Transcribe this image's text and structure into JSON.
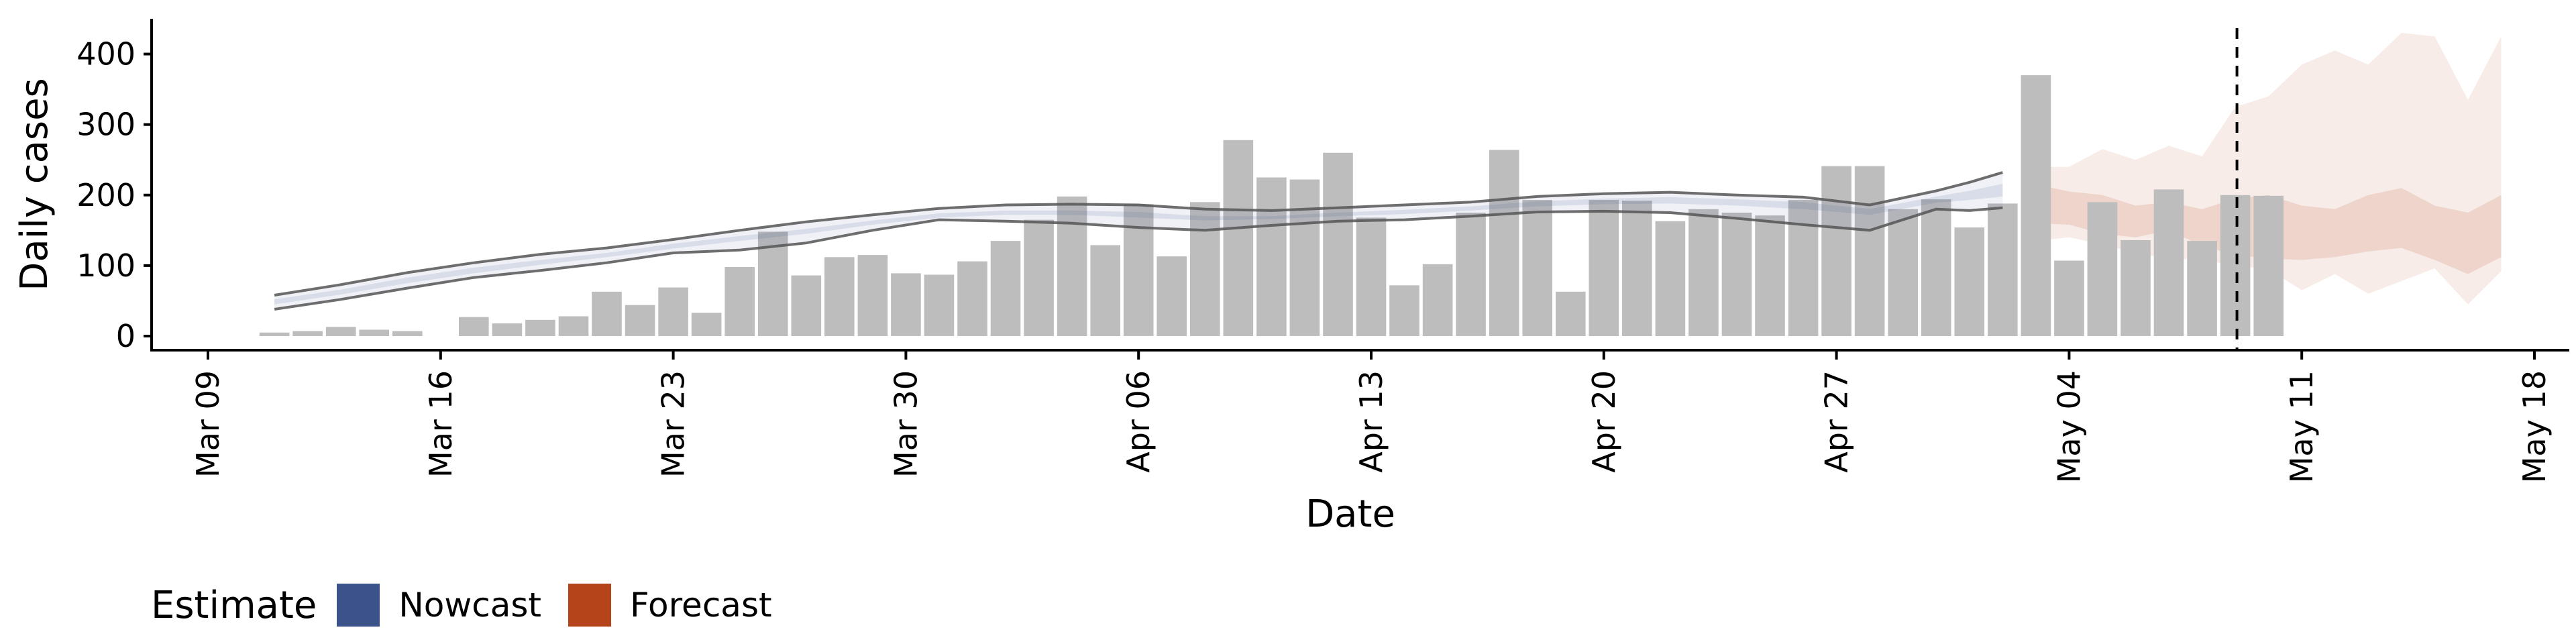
{
  "chart_data": {
    "type": "bar",
    "xlabel": "Date",
    "ylabel": "Daily cases",
    "ylim": [
      0,
      450
    ],
    "y_ticks": [
      0,
      100,
      200,
      300,
      400
    ],
    "x_ticks": [
      "Mar 09",
      "Mar 16",
      "Mar 23",
      "Mar 30",
      "Apr 06",
      "Apr 13",
      "Apr 20",
      "Apr 27",
      "May 04",
      "May 11",
      "May 18"
    ],
    "x_range": [
      "2020-03-09",
      "2020-05-18"
    ],
    "reported_cases": {
      "dates": [
        "2020-03-11",
        "2020-03-12",
        "2020-03-13",
        "2020-03-14",
        "2020-03-15",
        "2020-03-16",
        "2020-03-17",
        "2020-03-18",
        "2020-03-19",
        "2020-03-20",
        "2020-03-21",
        "2020-03-22",
        "2020-03-23",
        "2020-03-24",
        "2020-03-25",
        "2020-03-26",
        "2020-03-27",
        "2020-03-28",
        "2020-03-29",
        "2020-03-30",
        "2020-03-31",
        "2020-04-01",
        "2020-04-02",
        "2020-04-03",
        "2020-04-04",
        "2020-04-05",
        "2020-04-06",
        "2020-04-07",
        "2020-04-08",
        "2020-04-09",
        "2020-04-10",
        "2020-04-11",
        "2020-04-12",
        "2020-04-13",
        "2020-04-14",
        "2020-04-15",
        "2020-04-16",
        "2020-04-17",
        "2020-04-18",
        "2020-04-19",
        "2020-04-20",
        "2020-04-21",
        "2020-04-22",
        "2020-04-23",
        "2020-04-24",
        "2020-04-25",
        "2020-04-26",
        "2020-04-27",
        "2020-04-28",
        "2020-04-29",
        "2020-04-30",
        "2020-05-01",
        "2020-05-02",
        "2020-05-03",
        "2020-05-04",
        "2020-05-05",
        "2020-05-06",
        "2020-05-07",
        "2020-05-08",
        "2020-05-09",
        "2020-05-10"
      ],
      "values": [
        5,
        7,
        13,
        9,
        7,
        0,
        27,
        18,
        23,
        28,
        63,
        44,
        69,
        33,
        98,
        148,
        86,
        112,
        115,
        89,
        87,
        106,
        135,
        165,
        198,
        129,
        187,
        113,
        190,
        278,
        225,
        222,
        260,
        168,
        72,
        102,
        175,
        264,
        193,
        63,
        193,
        192,
        163,
        180,
        175,
        171,
        193,
        241,
        241,
        180,
        194,
        154,
        188,
        370,
        107,
        190,
        136,
        208,
        135,
        200,
        199
      ]
    },
    "estimate_dates": [
      "2020-03-11",
      "2020-03-13",
      "2020-03-15",
      "2020-03-17",
      "2020-03-19",
      "2020-03-21",
      "2020-03-23",
      "2020-03-25",
      "2020-03-27",
      "2020-03-29",
      "2020-03-31",
      "2020-04-02",
      "2020-04-04",
      "2020-04-06",
      "2020-04-08",
      "2020-04-10",
      "2020-04-12",
      "2020-04-14",
      "2020-04-16",
      "2020-04-18",
      "2020-04-20",
      "2020-04-22",
      "2020-04-24",
      "2020-04-26",
      "2020-04-28",
      "2020-04-30",
      "2020-05-01",
      "2020-05-02"
    ],
    "nowcast": {
      "outer_lower": [
        38,
        52,
        68,
        83,
        93,
        104,
        118,
        122,
        132,
        150,
        165,
        163,
        160,
        154,
        150,
        157,
        163,
        165,
        170,
        176,
        177,
        175,
        167,
        158,
        150,
        180,
        178,
        182
      ],
      "outer_upper": [
        58,
        73,
        90,
        104,
        116,
        125,
        137,
        150,
        162,
        172,
        181,
        186,
        187,
        186,
        180,
        178,
        182,
        186,
        190,
        198,
        202,
        204,
        200,
        197,
        186,
        206,
        218,
        232
      ],
      "inner_lower": [
        45,
        59,
        75,
        89,
        101,
        112,
        124,
        135,
        145,
        158,
        168,
        172,
        172,
        168,
        164,
        166,
        170,
        173,
        178,
        184,
        187,
        188,
        185,
        180,
        172,
        189,
        193,
        198
      ],
      "inner_upper": [
        52,
        66,
        83,
        97,
        108,
        118,
        131,
        142,
        152,
        164,
        174,
        178,
        178,
        176,
        170,
        170,
        175,
        179,
        184,
        191,
        195,
        197,
        194,
        190,
        180,
        198,
        206,
        216
      ]
    },
    "forecast": {
      "dates": [
        "2020-05-03",
        "2020-05-04",
        "2020-05-05",
        "2020-05-06",
        "2020-05-07",
        "2020-05-08",
        "2020-05-09",
        "2020-05-10",
        "2020-05-11",
        "2020-05-12",
        "2020-05-13",
        "2020-05-14",
        "2020-05-15",
        "2020-05-16",
        "2020-05-17"
      ],
      "outer_lower": [
        135,
        140,
        130,
        118,
        110,
        108,
        100,
        95,
        65,
        88,
        60,
        78,
        96,
        45,
        92
      ],
      "outer_upper": [
        240,
        240,
        265,
        250,
        270,
        255,
        325,
        340,
        385,
        405,
        385,
        430,
        425,
        335,
        425
      ],
      "inner_lower": [
        160,
        158,
        145,
        140,
        150,
        128,
        115,
        110,
        108,
        112,
        120,
        125,
        108,
        88,
        112
      ],
      "inner_upper": [
        215,
        205,
        200,
        185,
        190,
        180,
        195,
        200,
        185,
        180,
        200,
        210,
        185,
        175,
        200
      ]
    },
    "nowcast_cutoff_date": "2020-05-09",
    "colors": {
      "bars": "#bdbdbd",
      "nowcast": "#3B528B",
      "forecast": "#B5441B",
      "outline": "#555555"
    },
    "legend": {
      "title": "Estimate",
      "items": [
        "Nowcast",
        "Forecast"
      ],
      "position": "bottom-left"
    },
    "grid": false
  }
}
